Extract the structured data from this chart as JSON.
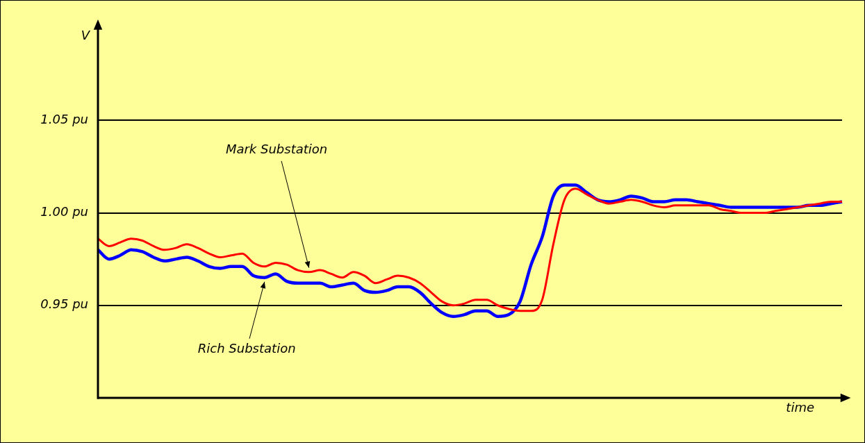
{
  "chart_data": {
    "type": "line",
    "xlabel": "time",
    "ylabel": "V",
    "categories": [
      null,
      null,
      null,
      null,
      null,
      null,
      null,
      null,
      null,
      null,
      null,
      null,
      null,
      null,
      null,
      null,
      null,
      null,
      null,
      null,
      null,
      null,
      null,
      null,
      null,
      null,
      null,
      null,
      null,
      null,
      null,
      null,
      null,
      null,
      null,
      null,
      null,
      null,
      null,
      null,
      null,
      null,
      null,
      null,
      null,
      null,
      null,
      null,
      null,
      null,
      null,
      null,
      null,
      null,
      null,
      null,
      null,
      null,
      null,
      null,
      null,
      null,
      null,
      null,
      null,
      null,
      null,
      null
    ],
    "ylim": [
      0.9,
      1.1
    ],
    "yticks": [
      {
        "value": 0.95,
        "label": "0.95 pu"
      },
      {
        "value": 1.0,
        "label": "1.00 pu"
      },
      {
        "value": 1.05,
        "label": "1.05 pu"
      }
    ],
    "grid": "y",
    "tick_labels": "y",
    "marker": "none",
    "line_style": "solid",
    "series": [
      {
        "name": "Mark Substation",
        "color": "#ff0000",
        "values": [
          0.986,
          0.982,
          0.984,
          0.986,
          0.985,
          0.982,
          0.98,
          0.981,
          0.983,
          0.981,
          0.978,
          0.976,
          0.977,
          0.978,
          0.973,
          0.971,
          0.973,
          0.972,
          0.969,
          0.968,
          0.969,
          0.967,
          0.965,
          0.968,
          0.966,
          0.962,
          0.964,
          0.966,
          0.965,
          0.962,
          0.957,
          0.952,
          0.95,
          0.951,
          0.953,
          0.953,
          0.95,
          0.948,
          0.947,
          0.947,
          0.953,
          0.983,
          1.007,
          1.013,
          1.01,
          1.007,
          1.005,
          1.006,
          1.007,
          1.006,
          1.004,
          1.003,
          1.004,
          1.004,
          1.004,
          1.004,
          1.002,
          1.001,
          1.0,
          1.0,
          1.0,
          1.001,
          1.002,
          1.003,
          1.004,
          1.005,
          1.006,
          1.006
        ]
      },
      {
        "name": "Rich Substation",
        "color": "#0000ff",
        "values": [
          0.98,
          0.975,
          0.977,
          0.98,
          0.979,
          0.976,
          0.974,
          0.975,
          0.976,
          0.974,
          0.971,
          0.97,
          0.971,
          0.971,
          0.966,
          0.965,
          0.967,
          0.963,
          0.962,
          0.962,
          0.962,
          0.96,
          0.961,
          0.962,
          0.958,
          0.957,
          0.958,
          0.96,
          0.96,
          0.957,
          0.951,
          0.946,
          0.944,
          0.945,
          0.947,
          0.947,
          0.944,
          0.945,
          0.952,
          0.972,
          0.987,
          1.009,
          1.015,
          1.015,
          1.011,
          1.007,
          1.006,
          1.007,
          1.009,
          1.008,
          1.006,
          1.006,
          1.007,
          1.007,
          1.006,
          1.005,
          1.004,
          1.003,
          1.003,
          1.003,
          1.003,
          1.003,
          1.003,
          1.003,
          1.004,
          1.004,
          1.005,
          1.006
        ]
      }
    ]
  }
}
